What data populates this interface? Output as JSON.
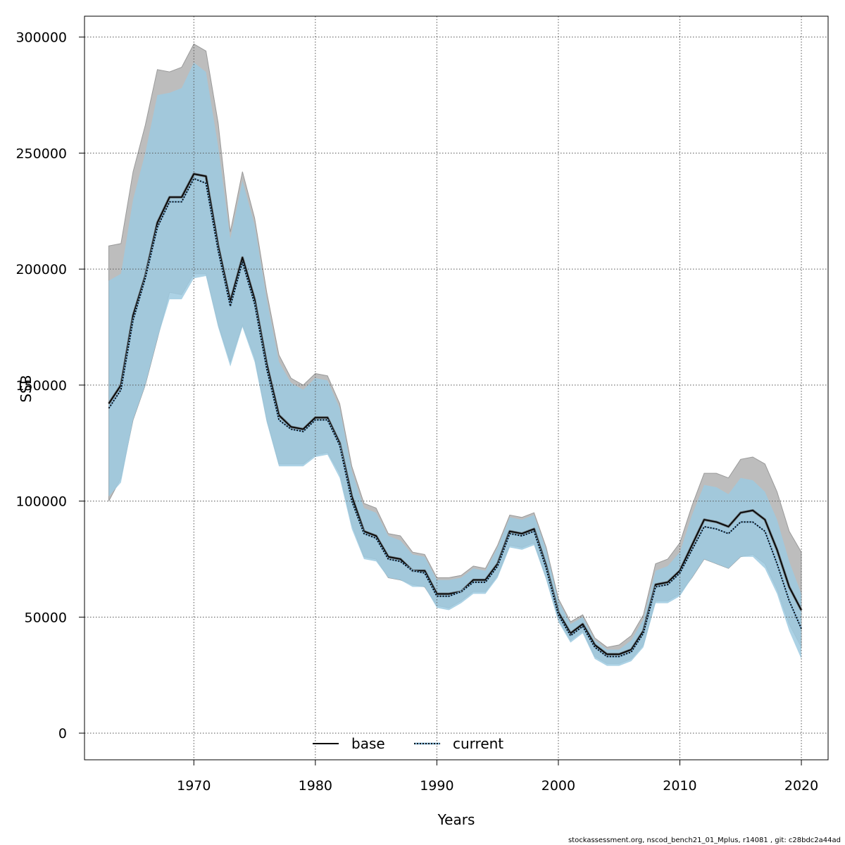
{
  "chart_data": {
    "type": "line",
    "title": "",
    "xlabel": "Years",
    "ylabel": "SSB",
    "xlim": [
      1961,
      2022.2
    ],
    "ylim": [
      -11500,
      309000
    ],
    "xticks": [
      1970,
      1980,
      1990,
      2000,
      2010,
      2020
    ],
    "yticks": [
      0,
      50000,
      100000,
      150000,
      200000,
      250000,
      300000
    ],
    "grid": true,
    "legend_position": "bottom-center",
    "x": [
      1963,
      1964,
      1965,
      1966,
      1967,
      1968,
      1969,
      1970,
      1971,
      1972,
      1973,
      1974,
      1975,
      1976,
      1977,
      1978,
      1979,
      1980,
      1981,
      1982,
      1983,
      1984,
      1985,
      1986,
      1987,
      1988,
      1989,
      1990,
      1991,
      1992,
      1993,
      1994,
      1995,
      1996,
      1997,
      1998,
      1999,
      2000,
      2001,
      2002,
      2003,
      2004,
      2005,
      2006,
      2007,
      2008,
      2009,
      2010,
      2011,
      2012,
      2013,
      2014,
      2015,
      2016,
      2017,
      2018,
      2019,
      2020
    ],
    "series": [
      {
        "name": "base",
        "style": "solid",
        "line_color": "#000000",
        "band_color": "#bdbdbd",
        "values": [
          142000,
          150000,
          180000,
          197000,
          220000,
          231000,
          231000,
          241000,
          240000,
          210000,
          186000,
          205000,
          187000,
          159000,
          137000,
          132000,
          131000,
          136000,
          136000,
          125000,
          102000,
          87000,
          85000,
          76000,
          75000,
          70000,
          70000,
          60000,
          60000,
          61000,
          66000,
          66000,
          73000,
          87000,
          86000,
          88000,
          72000,
          52000,
          43000,
          47000,
          38000,
          34000,
          34000,
          36000,
          44000,
          64000,
          65000,
          70000,
          81000,
          92000,
          91000,
          89000,
          95000,
          96000,
          92000,
          79000,
          63000,
          53000
        ],
        "lower": [
          100000,
          110000,
          135000,
          150000,
          170000,
          190000,
          189000,
          198000,
          198000,
          176000,
          160000,
          176000,
          162000,
          135000,
          116000,
          116000,
          116000,
          120000,
          121000,
          112000,
          90000,
          76000,
          75000,
          67000,
          66000,
          64000,
          63000,
          55000,
          54000,
          57000,
          61000,
          61000,
          68000,
          81000,
          80000,
          82000,
          67000,
          49000,
          40000,
          44000,
          33000,
          30000,
          30000,
          32000,
          38000,
          57000,
          57000,
          60000,
          67000,
          75000,
          73000,
          71000,
          76000,
          77000,
          73000,
          62000,
          47000,
          37000
        ],
        "upper": [
          210000,
          211000,
          242000,
          262000,
          286000,
          285000,
          287000,
          297000,
          294000,
          263000,
          216000,
          242000,
          222000,
          190000,
          163000,
          153000,
          150000,
          155000,
          154000,
          142000,
          115000,
          99000,
          97000,
          86000,
          85000,
          78000,
          77000,
          67000,
          67000,
          68000,
          72000,
          71000,
          81000,
          94000,
          93000,
          95000,
          80000,
          58000,
          48000,
          51000,
          41000,
          37000,
          38000,
          42000,
          51000,
          73000,
          75000,
          82000,
          98000,
          112000,
          112000,
          110000,
          118000,
          119000,
          116000,
          104000,
          87000,
          78000
        ]
      },
      {
        "name": "current",
        "style": "dotted",
        "line_color": "#0b2f5e",
        "band_color": "#9ecae1",
        "values": [
          140000,
          148000,
          178000,
          196000,
          218000,
          229000,
          229000,
          239000,
          237000,
          208000,
          184000,
          203000,
          185000,
          157000,
          135000,
          131000,
          130000,
          135000,
          135000,
          124000,
          100000,
          86000,
          84000,
          75000,
          74000,
          70000,
          69000,
          59000,
          59000,
          61000,
          65000,
          65000,
          72000,
          86000,
          85000,
          87000,
          71000,
          51000,
          42000,
          46000,
          37000,
          33000,
          33000,
          35000,
          43000,
          63000,
          64000,
          69000,
          79000,
          89000,
          88000,
          86000,
          91000,
          91000,
          87000,
          73000,
          57000,
          45000
        ],
        "lower": [
          102000,
          108000,
          135000,
          150000,
          170000,
          187000,
          187000,
          196000,
          197000,
          175000,
          158000,
          175000,
          160000,
          134000,
          115000,
          115000,
          115000,
          119000,
          120000,
          110000,
          88000,
          75000,
          74000,
          67000,
          66000,
          63000,
          63000,
          54000,
          53000,
          56000,
          60000,
          60000,
          67000,
          80000,
          79000,
          81000,
          66000,
          48000,
          39000,
          43000,
          32000,
          29000,
          29000,
          31000,
          37000,
          56000,
          56000,
          59000,
          67000,
          75000,
          73000,
          71000,
          76000,
          76000,
          71000,
          60000,
          44000,
          32000
        ],
        "upper": [
          195000,
          198000,
          230000,
          250000,
          275000,
          276000,
          278000,
          289000,
          285000,
          253000,
          213000,
          238000,
          219000,
          187000,
          160000,
          151000,
          148000,
          153000,
          152000,
          140000,
          113000,
          97000,
          95000,
          85000,
          83000,
          77000,
          76000,
          66000,
          66000,
          67000,
          71000,
          70000,
          80000,
          93000,
          92000,
          94000,
          79000,
          57000,
          47000,
          50000,
          40000,
          36000,
          36000,
          40000,
          49000,
          70000,
          72000,
          78000,
          94000,
          107000,
          106000,
          103000,
          110000,
          109000,
          104000,
          92000,
          74000,
          60000
        ]
      }
    ]
  },
  "footer_text": "stockassessment.org, nscod_bench21_01_Mplus, r14081 , git: c28bdc2a44ad"
}
